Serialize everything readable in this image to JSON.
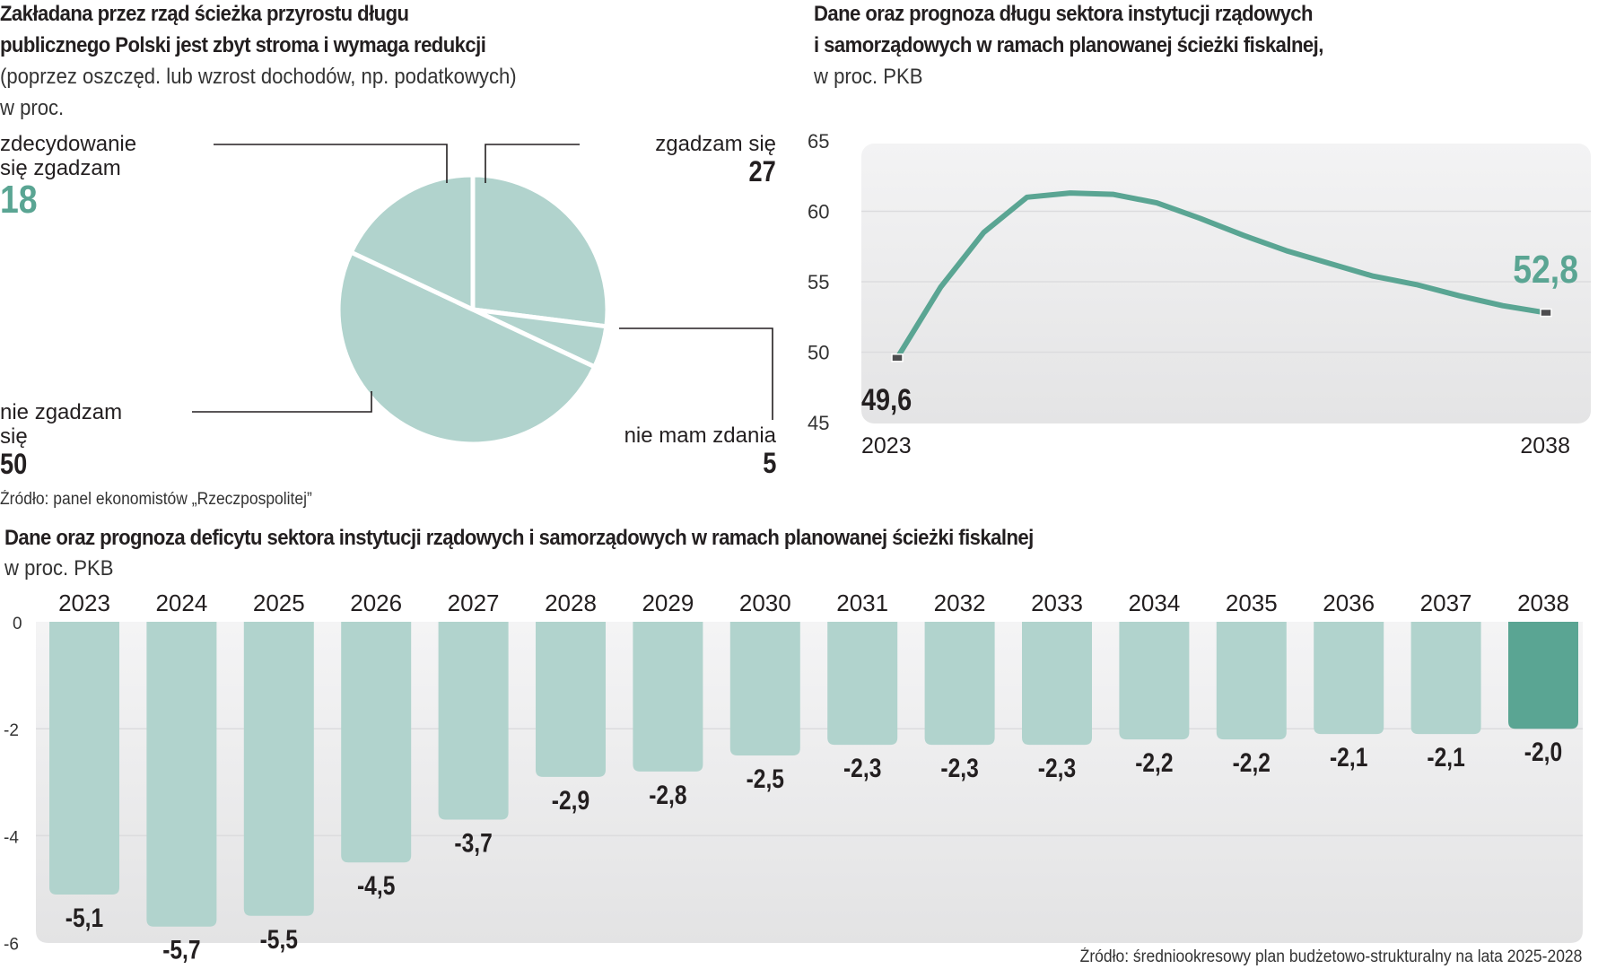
{
  "pie": {
    "title_line1": "Zakładana przez rząd ścieżka przyrostu długu",
    "title_line2": "publicznego Polski jest zbyt stroma i wymaga redukcji",
    "subtitle": "(poprzez oszczęd. lub wzrost dochodów, np. podatkowych)",
    "unit": "w proc.",
    "source": "Źródło: panel ekonomistów „Rzeczpospolitej”",
    "slices": [
      {
        "label_line1": "zgadzam się",
        "label_line2": "",
        "value": "27"
      },
      {
        "label_line1": "nie mam zdania",
        "label_line2": "",
        "value": "5"
      },
      {
        "label_line1": "nie zgadzam",
        "label_line2": "się",
        "value": "50"
      },
      {
        "label_line1": "zdecydowanie",
        "label_line2": "się zgadzam",
        "value": "18"
      }
    ]
  },
  "line": {
    "title_line1": "Dane oraz prognoza długu sektora instytucji rządowych",
    "title_line2": "i samorządowych w ramach planowanej ścieżki fiskalnej,",
    "unit": "w proc. PKB",
    "y_ticks": [
      "65",
      "60",
      "55",
      "50",
      "45"
    ],
    "x_start_label": "2023",
    "x_end_label": "2038",
    "start_value_label": "49,6",
    "end_value_label": "52,8"
  },
  "bar": {
    "title": "Dane oraz prognoza deficytu sektora instytucji rządowych i samorządowych w ramach planowanej ścieżki fiskalnej",
    "unit": "w proc. PKB",
    "y_ticks": [
      "0",
      "-2",
      "-4",
      "-6"
    ],
    "source": "Źródło: średniookresowy plan budżetowo-strukturalny na lata 2025-2028"
  },
  "colors": {
    "bar_light": "#b1d3cd",
    "bar_highlight": "#5aa593",
    "line": "#5aa593",
    "accent_text": "#5aa593",
    "pie_fill": "#b1d3cd",
    "text": "#231f20"
  },
  "chart_data": [
    {
      "type": "pie",
      "title": "Zakładana przez rząd ścieżka przyrostu długu publicznego Polski jest zbyt stroma i wymaga redukcji",
      "subtitle": "(poprzez oszczęd. lub wzrost dochodów, np. podatkowych) w proc.",
      "categories": [
        "zgadzam się",
        "nie mam zdania",
        "nie zgadzam się",
        "zdecydowanie się zgadzam"
      ],
      "values": [
        27,
        5,
        50,
        18
      ]
    },
    {
      "type": "line",
      "title": "Dane oraz prognoza długu sektora instytucji rządowych i samorządowych w ramach planowanej ścieżki fiskalnej, w proc. PKB",
      "x": [
        2023,
        2024,
        2025,
        2026,
        2027,
        2028,
        2029,
        2030,
        2031,
        2032,
        2033,
        2034,
        2035,
        2036,
        2037,
        2038
      ],
      "values": [
        49.6,
        54.6,
        58.5,
        61.0,
        61.3,
        61.2,
        60.6,
        59.5,
        58.3,
        57.2,
        56.3,
        55.4,
        54.8,
        54.0,
        53.3,
        52.8
      ],
      "ylim": [
        45,
        65
      ],
      "yticks": [
        45,
        50,
        55,
        60,
        65
      ],
      "grid": true,
      "annotations": [
        {
          "x": 2023,
          "label": "49,6"
        },
        {
          "x": 2038,
          "label": "52,8"
        }
      ]
    },
    {
      "type": "bar",
      "title": "Dane oraz prognoza deficytu sektora instytucji rządowych i samorządowych w ramach planowanej ścieżki fiskalnej",
      "ylabel": "w proc. PKB",
      "categories": [
        "2023",
        "2024",
        "2025",
        "2026",
        "2027",
        "2028",
        "2029",
        "2030",
        "2031",
        "2032",
        "2033",
        "2034",
        "2035",
        "2036",
        "2037",
        "2038"
      ],
      "values": [
        -5.1,
        -5.7,
        -5.5,
        -4.5,
        -3.7,
        -2.9,
        -2.8,
        -2.5,
        -2.3,
        -2.3,
        -2.3,
        -2.2,
        -2.2,
        -2.1,
        -2.1,
        -2.0
      ],
      "value_labels": [
        "-5,1",
        "-5,7",
        "-5,5",
        "-4,5",
        "-3,7",
        "-2,9",
        "-2,8",
        "-2,5",
        "-2,3",
        "-2,3",
        "-2,3",
        "-2,2",
        "-2,2",
        "-2,1",
        "-2,1",
        "-2,0"
      ],
      "highlight": "2038",
      "ylim": [
        -6,
        0
      ],
      "yticks": [
        0,
        -2,
        -4,
        -6
      ],
      "grid": true
    }
  ]
}
